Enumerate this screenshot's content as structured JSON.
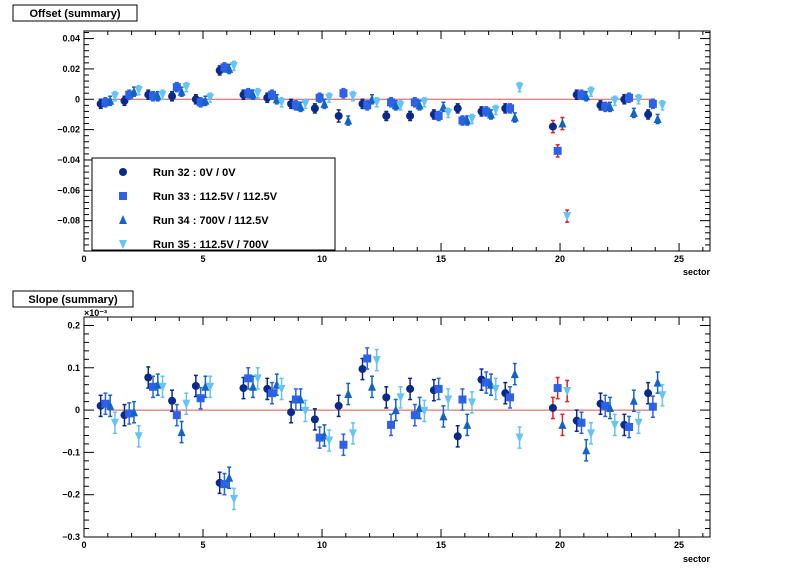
{
  "chart_data": [
    {
      "type": "scatter",
      "title": "Offset (summary)",
      "xlabel": "sector",
      "ylabel": "",
      "xlim": [
        0,
        26.3
      ],
      "ylim": [
        -0.1,
        0.045
      ],
      "xticks": [
        0,
        5,
        10,
        15,
        20,
        25
      ],
      "yticks": [
        -0.08,
        -0.06,
        -0.04,
        -0.02,
        0,
        0.02,
        0.04
      ],
      "ytick_labels": [
        "−0.08",
        "−0.06",
        "−0.04",
        "−0.02",
        "0",
        "0.02",
        "0.04"
      ],
      "multiplier": "",
      "grid": false,
      "legend_position": "bottom-left",
      "series": [
        {
          "name": "Run 32 : 0V / 0V",
          "marker": "circle",
          "color": "#0a2a8a",
          "x": [
            1,
            2,
            3,
            4,
            5,
            6,
            7,
            8,
            9,
            10,
            11,
            12,
            13,
            14,
            15,
            16,
            17,
            18,
            20,
            21,
            22,
            23,
            24
          ],
          "y": [
            -0.003,
            -0.001,
            0.003,
            0.002,
            0.0,
            0.019,
            0.003,
            0.001,
            -0.003,
            -0.006,
            -0.011,
            -0.003,
            -0.011,
            -0.011,
            -0.01,
            -0.006,
            -0.008,
            -0.006,
            -0.018,
            0.003,
            -0.004,
            0.0,
            -0.01
          ],
          "err": [
            0.003,
            0.003,
            0.003,
            0.003,
            0.003,
            0.003,
            0.003,
            0.003,
            0.003,
            0.003,
            0.004,
            0.003,
            0.003,
            0.003,
            0.003,
            0.003,
            0.003,
            0.003,
            0.004,
            0.003,
            0.003,
            0.003,
            0.003
          ]
        },
        {
          "name": "Run 33 : 112.5V / 112.5V",
          "marker": "square",
          "color": "#2d62e6",
          "x": [
            1,
            2,
            3,
            4,
            5,
            6,
            7,
            8,
            9,
            10,
            11,
            12,
            13,
            14,
            15,
            16,
            17,
            18,
            20,
            21,
            22,
            23,
            24
          ],
          "y": [
            -0.002,
            0.003,
            0.002,
            0.008,
            -0.002,
            0.021,
            0.004,
            0.003,
            -0.004,
            0.001,
            0.004,
            -0.004,
            -0.002,
            -0.002,
            -0.011,
            -0.014,
            -0.008,
            -0.006,
            -0.034,
            0.003,
            -0.005,
            0.001,
            -0.003
          ],
          "err": [
            0.003,
            0.003,
            0.003,
            0.003,
            0.003,
            0.003,
            0.003,
            0.003,
            0.003,
            0.003,
            0.003,
            0.003,
            0.003,
            0.003,
            0.003,
            0.003,
            0.003,
            0.003,
            0.004,
            0.003,
            0.003,
            0.003,
            0.003
          ]
        },
        {
          "name": "Run 34 : 700V / 112.5V",
          "marker": "triangle-up",
          "color": "#1464c8",
          "x": [
            1,
            2,
            3,
            4,
            5,
            6,
            7,
            8,
            9,
            10,
            11,
            12,
            13,
            14,
            15,
            16,
            17,
            18,
            20,
            21,
            22,
            23,
            24
          ],
          "y": [
            -0.001,
            0.005,
            0.002,
            0.005,
            -0.001,
            0.02,
            0.003,
            0.0,
            -0.005,
            -0.003,
            -0.014,
            0.0,
            -0.004,
            -0.004,
            -0.005,
            -0.014,
            -0.01,
            -0.012,
            -0.016,
            0.002,
            -0.005,
            -0.009,
            -0.013
          ],
          "err": [
            0.003,
            0.003,
            0.003,
            0.003,
            0.003,
            0.003,
            0.003,
            0.003,
            0.003,
            0.003,
            0.003,
            0.003,
            0.003,
            0.003,
            0.003,
            0.003,
            0.003,
            0.003,
            0.004,
            0.003,
            0.003,
            0.003,
            0.003
          ]
        },
        {
          "name": "Run 35 : 112.5V / 700V",
          "marker": "triangle-down",
          "color": "#66c3f5",
          "x": [
            1,
            2,
            3,
            4,
            5,
            6,
            7,
            8,
            9,
            10,
            11,
            12,
            13,
            14,
            15,
            16,
            17,
            18,
            20,
            21,
            22,
            23,
            24
          ],
          "y": [
            0.002,
            0.006,
            0.003,
            0.008,
            0.001,
            0.022,
            0.004,
            -0.002,
            -0.003,
            0.001,
            0.002,
            -0.002,
            -0.004,
            -0.002,
            -0.009,
            -0.013,
            -0.007,
            0.008,
            -0.077,
            0.005,
            -0.001,
            0.0,
            -0.004
          ],
          "err": [
            0.003,
            0.003,
            0.003,
            0.003,
            0.003,
            0.003,
            0.003,
            0.003,
            0.003,
            0.003,
            0.003,
            0.003,
            0.003,
            0.003,
            0.003,
            0.003,
            0.003,
            0.003,
            0.004,
            0.003,
            0.003,
            0.003,
            0.003
          ]
        }
      ],
      "highlight": {
        "sector": 20,
        "error_color": "#dd2222"
      }
    },
    {
      "type": "scatter",
      "title": "Slope (summary)",
      "xlabel": "sector",
      "ylabel": "",
      "xlim": [
        0,
        26.3
      ],
      "ylim": [
        -0.3,
        0.22
      ],
      "xticks": [
        0,
        5,
        10,
        15,
        20,
        25
      ],
      "yticks": [
        -0.3,
        -0.2,
        -0.1,
        0,
        0.1,
        0.2
      ],
      "ytick_labels": [
        "−0.3",
        "−0.2",
        "−0.1",
        "0",
        "0.1",
        "0.2"
      ],
      "multiplier": "×10⁻³",
      "grid": false,
      "legend_position": "none",
      "series": [
        {
          "name": "Run 32 : 0V / 0V",
          "marker": "circle",
          "color": "#0a2a8a",
          "x": [
            1,
            2,
            3,
            4,
            5,
            6,
            7,
            8,
            9,
            10,
            11,
            12,
            13,
            14,
            15,
            16,
            17,
            18,
            20,
            21,
            22,
            23,
            24
          ],
          "y": [
            0.01,
            -0.012,
            0.077,
            0.022,
            0.057,
            -0.172,
            0.052,
            0.05,
            -0.005,
            -0.022,
            0.01,
            0.097,
            0.03,
            0.05,
            0.047,
            -0.062,
            0.072,
            0.04,
            0.005,
            -0.025,
            0.015,
            -0.035,
            0.04
          ],
          "err": [
            0.025,
            0.025,
            0.025,
            0.025,
            0.025,
            0.025,
            0.025,
            0.025,
            0.025,
            0.025,
            0.025,
            0.025,
            0.025,
            0.025,
            0.025,
            0.025,
            0.025,
            0.025,
            0.025,
            0.025,
            0.025,
            0.025,
            0.025
          ]
        },
        {
          "name": "Run 33 : 112.5V / 112.5V",
          "marker": "square",
          "color": "#2d62e6",
          "x": [
            1,
            2,
            3,
            4,
            5,
            6,
            7,
            8,
            9,
            10,
            11,
            12,
            13,
            14,
            15,
            16,
            17,
            18,
            20,
            21,
            22,
            23,
            24
          ],
          "y": [
            0.015,
            -0.008,
            0.055,
            -0.012,
            0.028,
            -0.175,
            0.075,
            0.04,
            0.025,
            -0.065,
            -0.082,
            0.122,
            -0.035,
            -0.012,
            0.05,
            0.025,
            0.065,
            0.03,
            0.052,
            -0.03,
            0.01,
            -0.04,
            0.008
          ],
          "err": [
            0.025,
            0.025,
            0.025,
            0.025,
            0.025,
            0.025,
            0.025,
            0.025,
            0.025,
            0.025,
            0.025,
            0.025,
            0.025,
            0.025,
            0.025,
            0.025,
            0.025,
            0.025,
            0.025,
            0.025,
            0.025,
            0.025,
            0.025
          ]
        },
        {
          "name": "Run 34 : 700V / 112.5V",
          "marker": "triangle-up",
          "color": "#1464c8",
          "x": [
            1,
            2,
            3,
            4,
            5,
            6,
            7,
            8,
            9,
            10,
            11,
            12,
            13,
            14,
            15,
            16,
            17,
            18,
            20,
            21,
            22,
            23,
            24
          ],
          "y": [
            0.01,
            -0.005,
            0.06,
            -0.052,
            0.055,
            -0.16,
            0.055,
            0.06,
            0.025,
            -0.06,
            0.038,
            0.055,
            0.0,
            0.005,
            -0.015,
            -0.035,
            0.06,
            0.085,
            -0.035,
            -0.095,
            0.005,
            0.022,
            0.065
          ],
          "err": [
            0.025,
            0.025,
            0.025,
            0.025,
            0.025,
            0.025,
            0.025,
            0.025,
            0.025,
            0.025,
            0.025,
            0.025,
            0.025,
            0.025,
            0.025,
            0.025,
            0.025,
            0.025,
            0.025,
            0.025,
            0.025,
            0.025,
            0.025
          ]
        },
        {
          "name": "Run 35 : 112.5V / 700V",
          "marker": "triangle-down",
          "color": "#66c3f5",
          "x": [
            1,
            2,
            3,
            4,
            5,
            6,
            7,
            8,
            9,
            10,
            11,
            12,
            13,
            14,
            15,
            16,
            17,
            18,
            20,
            21,
            22,
            23,
            24
          ],
          "y": [
            -0.03,
            -0.062,
            0.055,
            0.015,
            0.055,
            -0.21,
            0.075,
            0.05,
            -0.002,
            -0.072,
            -0.055,
            0.118,
            0.03,
            -0.002,
            0.025,
            0.018,
            0.05,
            -0.065,
            0.045,
            -0.055,
            -0.035,
            -0.03,
            0.035
          ],
          "err": [
            0.025,
            0.025,
            0.025,
            0.025,
            0.025,
            0.025,
            0.025,
            0.025,
            0.025,
            0.025,
            0.025,
            0.025,
            0.025,
            0.025,
            0.025,
            0.025,
            0.025,
            0.025,
            0.025,
            0.025,
            0.025,
            0.025,
            0.025
          ]
        }
      ],
      "highlight": {
        "sector": 20,
        "error_color": "#dd2222"
      }
    }
  ]
}
